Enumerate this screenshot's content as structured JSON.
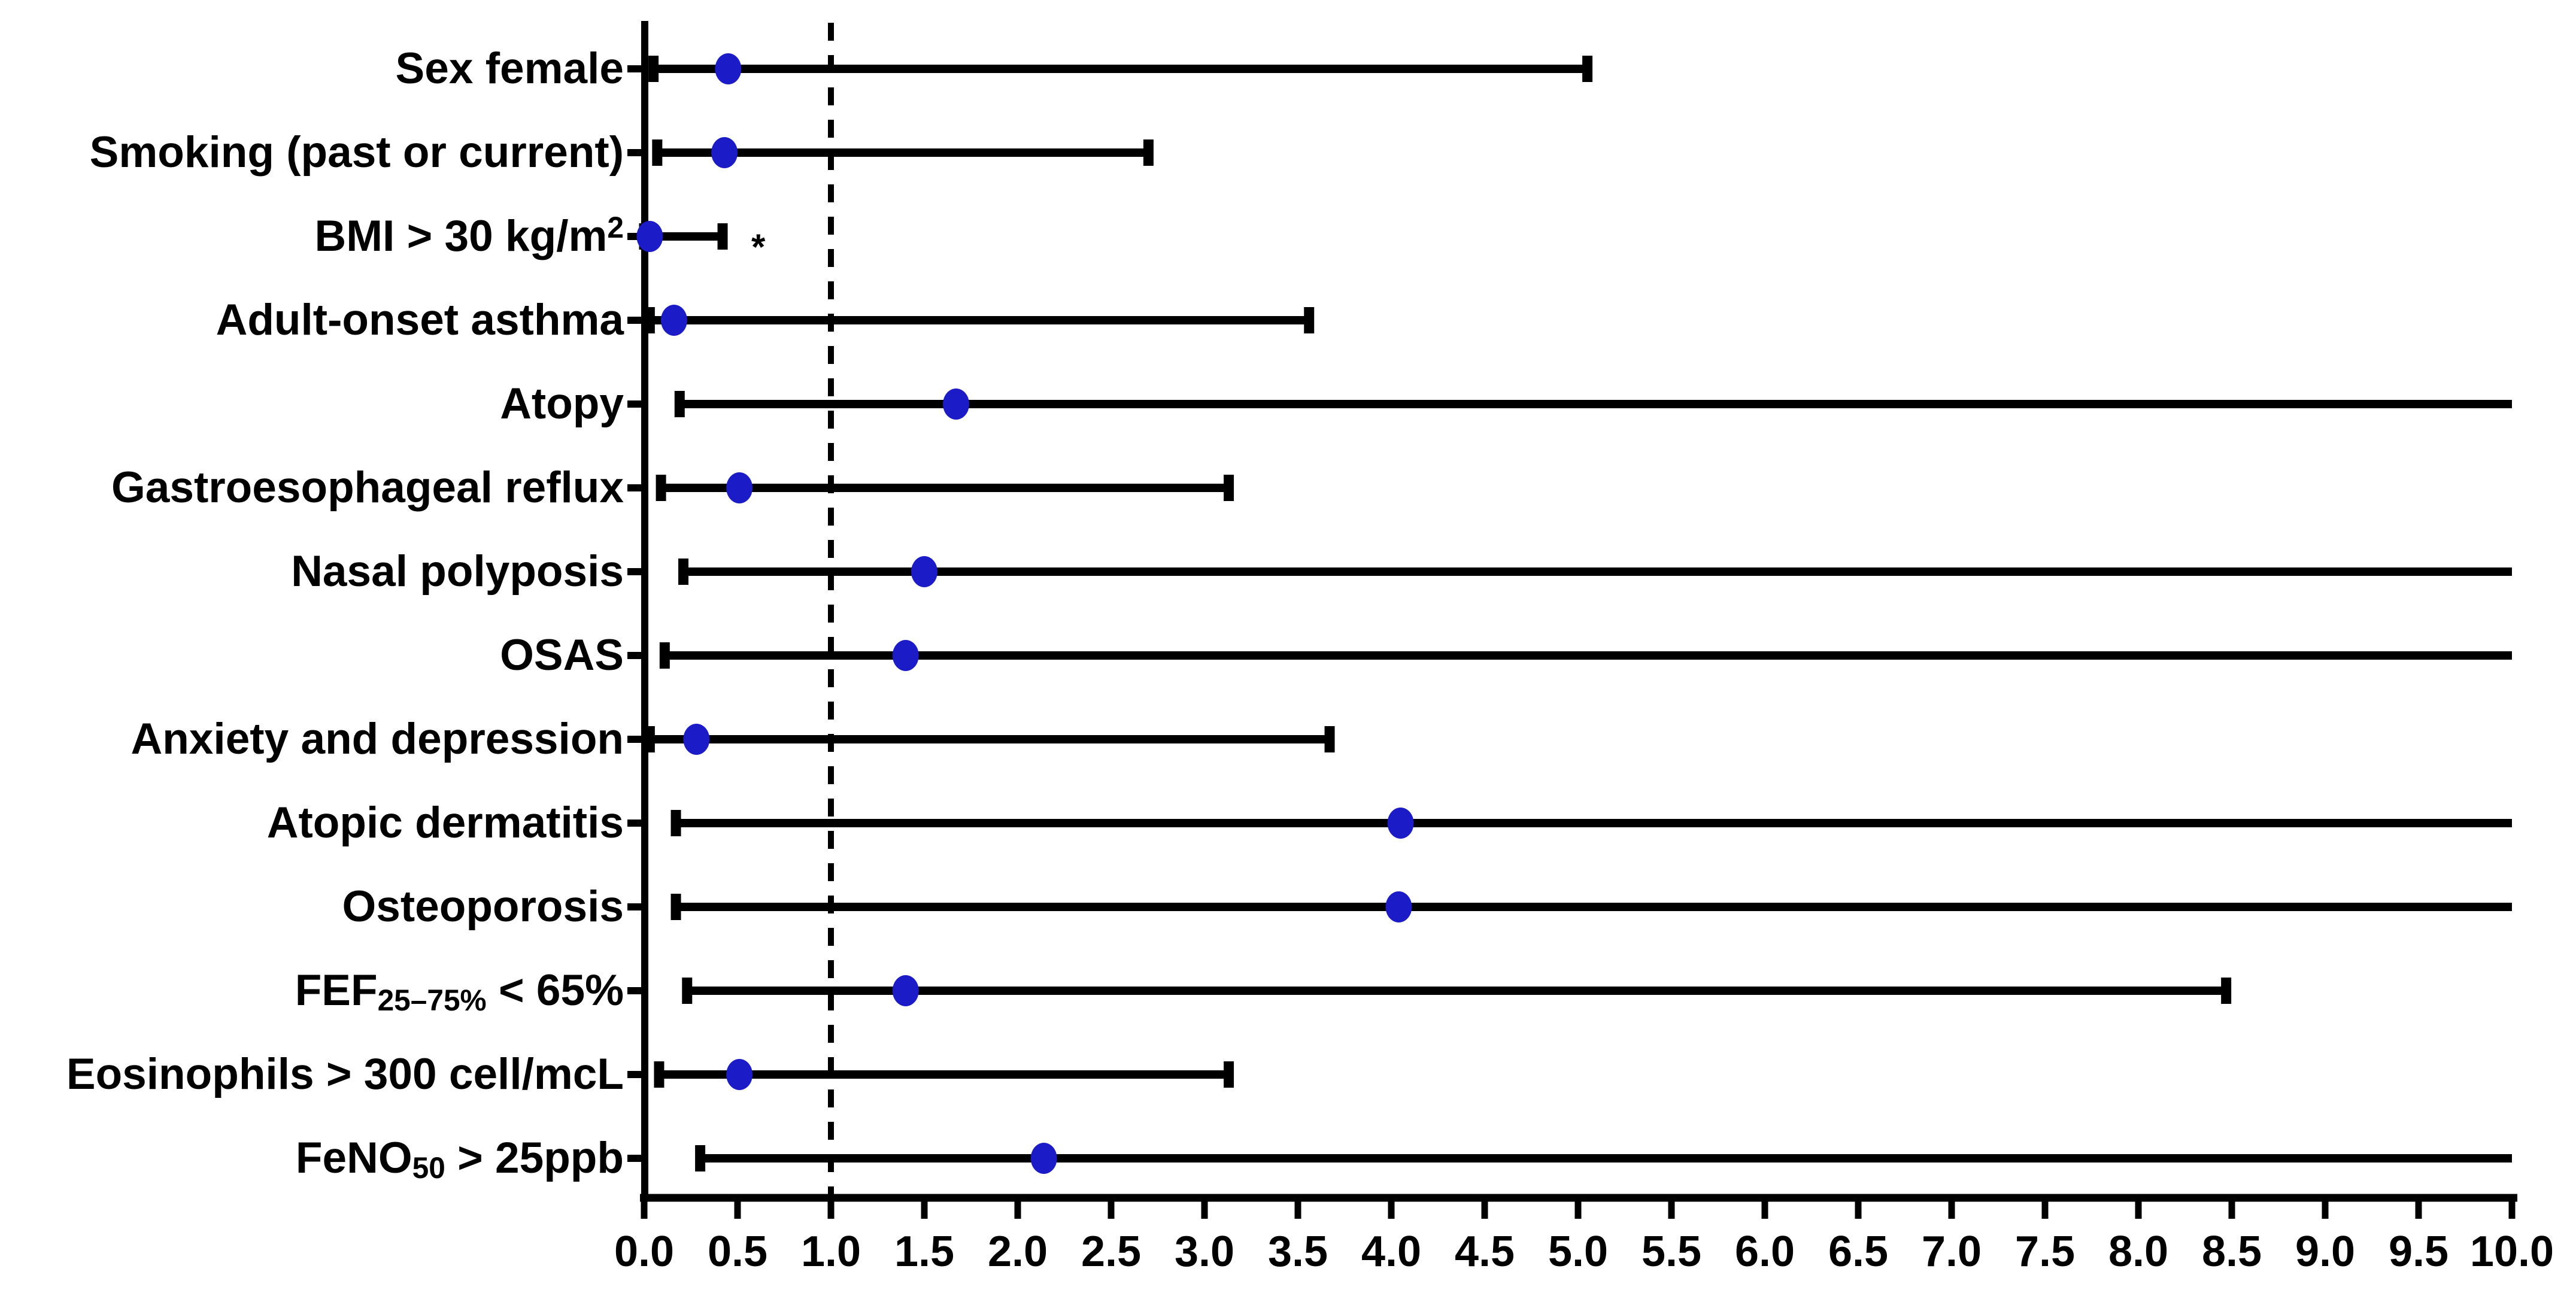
{
  "chart_data": {
    "type": "scatter",
    "variant": "forest-plot-odds-ratios-with-95ci",
    "title": "",
    "xlabel": "",
    "ylabel": "",
    "grid": false,
    "legend": false,
    "background_color": "#ffffff",
    "line_color": "#000000",
    "marker_color": "#1b1bc8",
    "reference_line_x": 1.0,
    "reference_line_style": "dashed",
    "significance_marker": "*",
    "x_axis": {
      "min": 0.0,
      "max": 10.0,
      "tick_step": 0.5,
      "tick_labels": [
        "0.0",
        "0.5",
        "1.0",
        "1.5",
        "2.0",
        "2.5",
        "3.0",
        "3.5",
        "4.0",
        "4.5",
        "5.0",
        "5.5",
        "6.0",
        "6.5",
        "7.0",
        "7.5",
        "8.0",
        "8.5",
        "9.0",
        "9.5",
        "10.0"
      ]
    },
    "rows": [
      {
        "label": "Sex female",
        "segments": [
          {
            "text": "Sex female"
          }
        ],
        "estimate": 0.45,
        "ci_low": 0.05,
        "ci_high": 5.05,
        "ci_high_clipped": false,
        "significant": false
      },
      {
        "label": "Smoking (past or current)",
        "segments": [
          {
            "text": "Smoking (past or current)"
          }
        ],
        "estimate": 0.43,
        "ci_low": 0.07,
        "ci_high": 2.7,
        "ci_high_clipped": false,
        "significant": false
      },
      {
        "label": "BMI > 30 kg/m2",
        "segments": [
          {
            "text": "BMI > 30 kg/m"
          },
          {
            "text": "2",
            "style": "sup"
          }
        ],
        "estimate": 0.03,
        "ci_low": 0.0,
        "ci_high": 0.42,
        "ci_high_clipped": false,
        "significant": true
      },
      {
        "label": "Adult-onset asthma",
        "segments": [
          {
            "text": "Adult-onset asthma"
          }
        ],
        "estimate": 0.16,
        "ci_low": 0.03,
        "ci_high": 3.56,
        "ci_high_clipped": false,
        "significant": false
      },
      {
        "label": "Atopy",
        "segments": [
          {
            "text": "Atopy"
          }
        ],
        "estimate": 1.67,
        "ci_low": 0.19,
        "ci_high": 10.0,
        "ci_high_clipped": true,
        "significant": false
      },
      {
        "label": "Gastroesophageal reflux",
        "segments": [
          {
            "text": "Gastroesophageal reflux"
          }
        ],
        "estimate": 0.51,
        "ci_low": 0.09,
        "ci_high": 3.13,
        "ci_high_clipped": false,
        "significant": false
      },
      {
        "label": "Nasal polyposis",
        "segments": [
          {
            "text": "Nasal polyposis"
          }
        ],
        "estimate": 1.5,
        "ci_low": 0.21,
        "ci_high": 10.0,
        "ci_high_clipped": true,
        "significant": false
      },
      {
        "label": "OSAS",
        "segments": [
          {
            "text": "OSAS"
          }
        ],
        "estimate": 1.4,
        "ci_low": 0.11,
        "ci_high": 10.0,
        "ci_high_clipped": true,
        "significant": false
      },
      {
        "label": "Anxiety and depression",
        "segments": [
          {
            "text": "Anxiety and depression"
          }
        ],
        "estimate": 0.28,
        "ci_low": 0.03,
        "ci_high": 3.67,
        "ci_high_clipped": false,
        "significant": false
      },
      {
        "label": "Atopic dermatitis",
        "segments": [
          {
            "text": "Atopic dermatitis"
          }
        ],
        "estimate": 4.05,
        "ci_low": 0.17,
        "ci_high": 10.0,
        "ci_high_clipped": true,
        "significant": false
      },
      {
        "label": "Osteoporosis",
        "segments": [
          {
            "text": "Osteoporosis"
          }
        ],
        "estimate": 4.04,
        "ci_low": 0.17,
        "ci_high": 10.0,
        "ci_high_clipped": true,
        "significant": false
      },
      {
        "label": "FEF25–75% < 65%",
        "segments": [
          {
            "text": "FEF"
          },
          {
            "text": "25–75%",
            "style": "sub"
          },
          {
            "text": " < 65%"
          }
        ],
        "estimate": 1.4,
        "ci_low": 0.23,
        "ci_high": 8.47,
        "ci_high_clipped": false,
        "significant": false
      },
      {
        "label": "Eosinophils > 300 cell/mcL",
        "segments": [
          {
            "text": "Eosinophils > 300 cell/mcL"
          }
        ],
        "estimate": 0.51,
        "ci_low": 0.08,
        "ci_high": 3.13,
        "ci_high_clipped": false,
        "significant": false
      },
      {
        "label": "FeNO50 > 25ppb",
        "segments": [
          {
            "text": "FeNO"
          },
          {
            "text": "50",
            "style": "sub"
          },
          {
            "text": " > 25ppb"
          }
        ],
        "estimate": 2.14,
        "ci_low": 0.3,
        "ci_high": 10.0,
        "ci_high_clipped": true,
        "significant": false
      }
    ]
  }
}
